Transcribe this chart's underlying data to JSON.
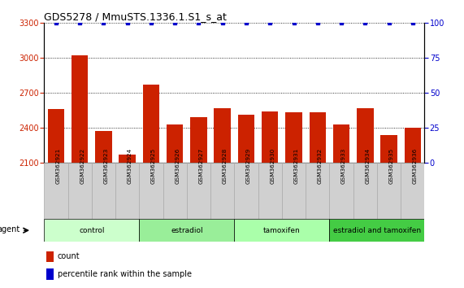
{
  "title": "GDS5278 / MmuSTS.1336.1.S1_s_at",
  "samples": [
    "GSM362921",
    "GSM362922",
    "GSM362923",
    "GSM362924",
    "GSM362925",
    "GSM362926",
    "GSM362927",
    "GSM362928",
    "GSM362929",
    "GSM362930",
    "GSM362931",
    "GSM362932",
    "GSM362933",
    "GSM362934",
    "GSM362935",
    "GSM362936"
  ],
  "bar_values": [
    2560,
    3020,
    2370,
    2170,
    2770,
    2430,
    2490,
    2570,
    2510,
    2540,
    2530,
    2530,
    2430,
    2570,
    2340,
    2400
  ],
  "percentile_values": [
    100,
    100,
    100,
    100,
    100,
    100,
    100,
    100,
    100,
    100,
    100,
    100,
    100,
    100,
    100,
    100
  ],
  "bar_color": "#cc2200",
  "percentile_color": "#0000cc",
  "ylim_left": [
    2100,
    3300
  ],
  "ylim_right": [
    0,
    100
  ],
  "yticks_left": [
    2100,
    2400,
    2700,
    3000,
    3300
  ],
  "yticks_right": [
    0,
    25,
    50,
    75,
    100
  ],
  "groups": [
    {
      "label": "control",
      "start": 0,
      "end": 4,
      "color": "#ccffcc"
    },
    {
      "label": "estradiol",
      "start": 4,
      "end": 8,
      "color": "#99ee99"
    },
    {
      "label": "tamoxifen",
      "start": 8,
      "end": 12,
      "color": "#aaffaa"
    },
    {
      "label": "estradiol and tamoxifen",
      "start": 12,
      "end": 16,
      "color": "#44cc44"
    }
  ],
  "agent_label": "agent",
  "legend_count_label": "count",
  "legend_percentile_label": "percentile rank within the sample",
  "background_color": "#ffffff",
  "tick_label_color_left": "#cc2200",
  "tick_label_color_right": "#0000cc",
  "title_color": "#000000",
  "bar_width": 0.7,
  "sample_box_color": "#d0d0d0",
  "sample_box_edgecolor": "#aaaaaa"
}
